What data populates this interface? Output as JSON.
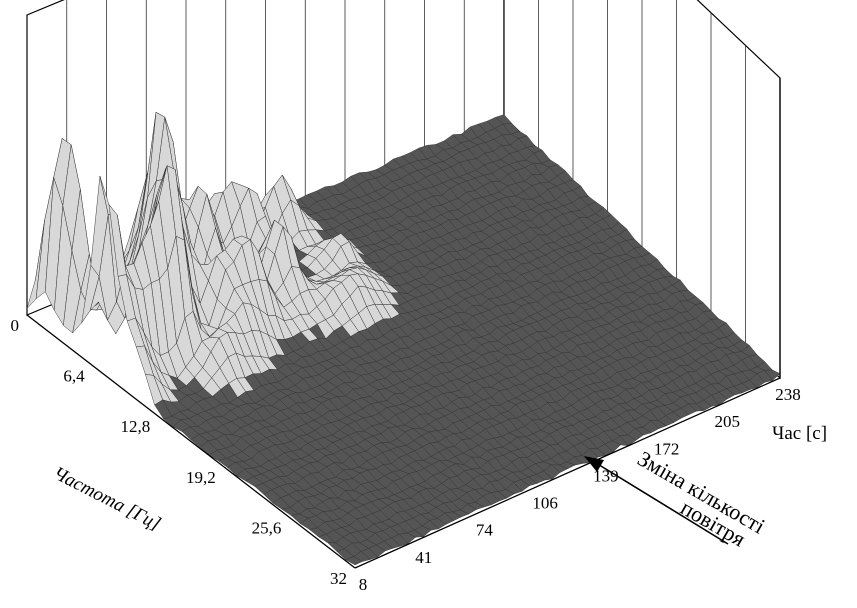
{
  "chart_data": {
    "type": "surface",
    "title": "",
    "xlabel": "Частота [Гц]",
    "ylabel": "Час [с]",
    "x_ticks": [
      "0",
      "6,4",
      "12,8",
      "19,2",
      "25,6",
      "32"
    ],
    "y_ticks": [
      "8",
      "41",
      "74",
      "106",
      "139",
      "172",
      "205",
      "238"
    ],
    "xlim": [
      0,
      32
    ],
    "ylim": [
      8,
      238
    ],
    "grid": true,
    "annotation": {
      "line1": "Зміна кількості",
      "line2": "повітря",
      "time": 139
    },
    "colors": {
      "surface": "#d8d8d8",
      "mesh": "#2a2a2a",
      "floor": "#555555",
      "frame": "#000000"
    }
  }
}
